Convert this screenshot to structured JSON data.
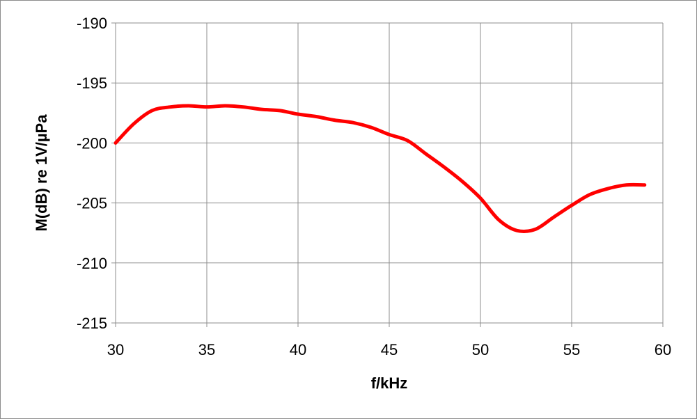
{
  "chart_data": {
    "type": "line",
    "xlabel": "f/kHz",
    "ylabel": "M(dB) re 1V/µPa",
    "xlim": [
      30,
      60
    ],
    "ylim": [
      -215,
      -190
    ],
    "x_ticks": [
      30,
      35,
      40,
      45,
      50,
      55,
      60
    ],
    "y_ticks": [
      -190,
      -195,
      -200,
      -205,
      -210,
      -215
    ],
    "grid": true,
    "legend": "none",
    "series": [
      {
        "color": "#ff0000",
        "x": [
          30,
          31,
          32,
          33,
          34,
          35,
          36,
          37,
          38,
          39,
          40,
          41,
          42,
          43,
          44,
          45,
          46,
          47,
          48,
          49,
          50,
          51,
          52,
          53,
          54,
          55,
          56,
          57,
          58,
          59
        ],
        "y": [
          -200.0,
          -198.4,
          -197.3,
          -197.0,
          -196.9,
          -197.0,
          -196.9,
          -197.0,
          -197.2,
          -197.3,
          -197.6,
          -197.8,
          -198.1,
          -198.3,
          -198.7,
          -199.3,
          -199.8,
          -200.9,
          -202.0,
          -203.2,
          -204.6,
          -206.4,
          -207.3,
          -207.2,
          -206.2,
          -205.2,
          -204.3,
          -203.8,
          -203.5,
          -203.5
        ]
      }
    ]
  }
}
